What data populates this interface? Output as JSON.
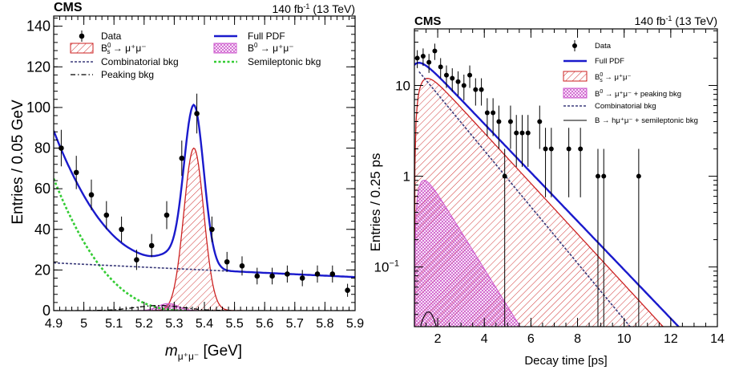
{
  "chart_data": [
    {
      "type": "line",
      "experiment": "CMS",
      "lumi_prefix": "140 fb",
      "lumi_exp": "-1",
      "lumi_suffix": " (13 TeV)",
      "ylabel": "Entries / 0.05 GeV",
      "xlabel_main": "m",
      "xlabel_sub": "μ⁺μ⁻",
      "xlabel_unit": " [GeV]",
      "xlim": [
        4.9,
        5.9
      ],
      "ylim": [
        0,
        145
      ],
      "xticks": [
        "4.9",
        "5",
        "5.1",
        "5.2",
        "5.3",
        "5.4",
        "5.5",
        "5.6",
        "5.7",
        "5.8",
        "5.9"
      ],
      "yticks": [
        "0",
        "20",
        "40",
        "60",
        "80",
        "100",
        "120",
        "140"
      ],
      "legend": {
        "data": "Data",
        "full_pdf": "Full PDF",
        "bs_main": "B",
        "bs_sup": "0",
        "bs_sub": "s",
        "bs_rest": " → μ⁺μ⁻",
        "b0_main": "B",
        "b0_sup": "0",
        "b0_rest": " → μ⁺μ⁻",
        "comb": "Combinatorial bkg",
        "semi": "Semileptonic bkg",
        "peak": "Peaking bkg"
      },
      "data_points": [
        {
          "x": 4.925,
          "y": 80,
          "err": 9
        },
        {
          "x": 4.975,
          "y": 68,
          "err": 8.2
        },
        {
          "x": 5.025,
          "y": 57,
          "err": 7.5
        },
        {
          "x": 5.075,
          "y": 47,
          "err": 6.9
        },
        {
          "x": 5.125,
          "y": 40,
          "err": 6.3
        },
        {
          "x": 5.175,
          "y": 25,
          "err": 5
        },
        {
          "x": 5.225,
          "y": 32,
          "err": 5.7
        },
        {
          "x": 5.275,
          "y": 47,
          "err": 6.9
        },
        {
          "x": 5.325,
          "y": 75,
          "err": 8.7
        },
        {
          "x": 5.375,
          "y": 97,
          "err": 9.8
        },
        {
          "x": 5.425,
          "y": 40,
          "err": 6.3
        },
        {
          "x": 5.475,
          "y": 24,
          "err": 4.9
        },
        {
          "x": 5.525,
          "y": 22,
          "err": 4.7
        },
        {
          "x": 5.575,
          "y": 17,
          "err": 4.1
        },
        {
          "x": 5.625,
          "y": 17,
          "err": 4.1
        },
        {
          "x": 5.675,
          "y": 18,
          "err": 4.2
        },
        {
          "x": 5.725,
          "y": 16,
          "err": 4
        },
        {
          "x": 5.775,
          "y": 18,
          "err": 4.2
        },
        {
          "x": 5.825,
          "y": 18,
          "err": 4.2
        },
        {
          "x": 5.875,
          "y": 10,
          "err": 3.2
        }
      ],
      "colors": {
        "full_pdf": "#1a1acc",
        "signal": "#cc2222",
        "b0": "#cc55cc",
        "comb": "#3a3a7a",
        "semi": "#33cc33"
      }
    },
    {
      "type": "line",
      "yscale": "log",
      "experiment": "CMS",
      "lumi_prefix": "140 fb",
      "lumi_exp": "-1",
      "lumi_suffix": " (13 TeV)",
      "ylabel": "Entries / 0.25 ps",
      "xlabel": "Decay time [ps]",
      "xlim": [
        1,
        14
      ],
      "ylim": [
        0.022,
        42
      ],
      "xticks": [
        "2",
        "4",
        "6",
        "8",
        "10",
        "12",
        "14"
      ],
      "yticks": [
        {
          "value": 10,
          "label": "10"
        },
        {
          "value": 1,
          "label": "1"
        },
        {
          "value": 0.1,
          "label": "10",
          "exp": "−1"
        }
      ],
      "legend": {
        "data": "Data",
        "full_pdf": "Full PDF",
        "bs_main": "B",
        "bs_sup": "0",
        "bs_sub": "s",
        "bs_rest": " → μ⁺μ⁻",
        "b0_main": "B",
        "b0_sup": "0",
        "b0_rest": " → μ⁺μ⁻ + peaking bkg",
        "comb": "Combinatorial bkg",
        "semi": "B → hμ⁺μ⁻ + semileptonic bkg"
      },
      "data_points": [
        {
          "x": 1.125,
          "y": 20
        },
        {
          "x": 1.375,
          "y": 21
        },
        {
          "x": 1.625,
          "y": 18
        },
        {
          "x": 1.875,
          "y": 24
        },
        {
          "x": 2.125,
          "y": 16
        },
        {
          "x": 2.375,
          "y": 13
        },
        {
          "x": 2.625,
          "y": 12
        },
        {
          "x": 2.875,
          "y": 11
        },
        {
          "x": 3.125,
          "y": 10
        },
        {
          "x": 3.375,
          "y": 13
        },
        {
          "x": 3.625,
          "y": 9
        },
        {
          "x": 3.875,
          "y": 9
        },
        {
          "x": 4.125,
          "y": 5
        },
        {
          "x": 4.375,
          "y": 5
        },
        {
          "x": 4.625,
          "y": 4
        },
        {
          "x": 4.875,
          "y": 1
        },
        {
          "x": 5.125,
          "y": 4
        },
        {
          "x": 5.375,
          "y": 3
        },
        {
          "x": 5.625,
          "y": 3
        },
        {
          "x": 5.875,
          "y": 3
        },
        {
          "x": 6.375,
          "y": 4
        },
        {
          "x": 6.625,
          "y": 2
        },
        {
          "x": 6.875,
          "y": 2
        },
        {
          "x": 7.625,
          "y": 2
        },
        {
          "x": 8.125,
          "y": 2
        },
        {
          "x": 8.875,
          "y": 1
        },
        {
          "x": 9.125,
          "y": 1
        },
        {
          "x": 10.625,
          "y": 1
        }
      ],
      "colors": {
        "full_pdf": "#1a1acc",
        "signal": "#cc2222",
        "b0": "#cc55cc",
        "comb": "#3a3a7a",
        "semi": "#000000"
      }
    }
  ]
}
